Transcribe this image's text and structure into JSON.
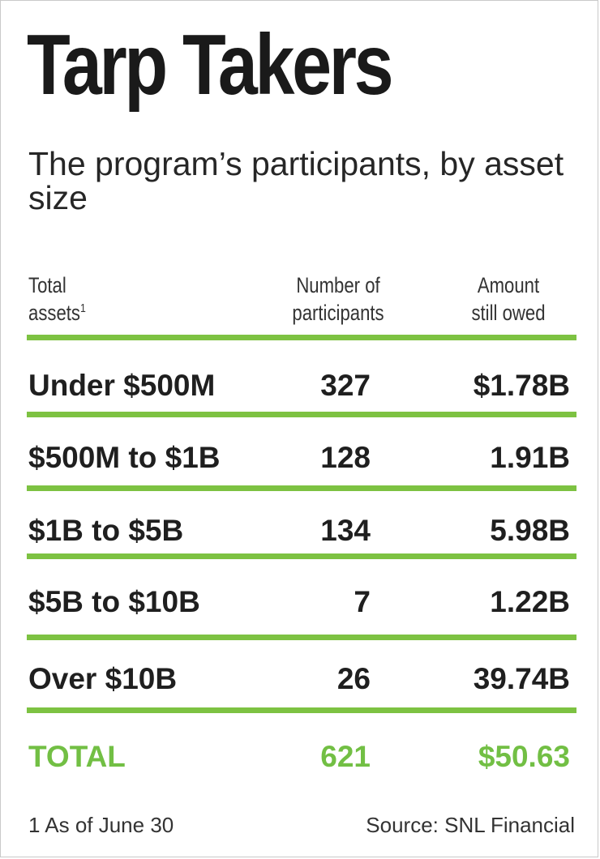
{
  "chart_data": {
    "type": "table",
    "title": "Tarp Takers",
    "subtitle": "The program’s participants, by asset size",
    "columns": {
      "assets": "Total\nassets",
      "assets_note_mark": "1",
      "participants": "Number of\nparticipants",
      "owed": "Amount\nstill owed"
    },
    "rows": [
      {
        "label": "Under $500M",
        "participants": "327",
        "owed": "$1.78B"
      },
      {
        "label": "$500M to $1B",
        "participants": "128",
        "owed": "1.91B"
      },
      {
        "label": "$1B to $5B",
        "participants": "134",
        "owed": "5.98B"
      },
      {
        "label": "$5B to $10B",
        "participants": "7",
        "owed": "1.22B"
      },
      {
        "label": "Over $10B",
        "participants": "26",
        "owed": "39.74B"
      }
    ],
    "total": {
      "label": "TOTAL",
      "participants": "621",
      "owed": "$50.63"
    },
    "values": {
      "participants": [
        327,
        128,
        134,
        7,
        26
      ],
      "owed_billions": [
        1.78,
        1.91,
        5.98,
        1.22,
        39.74
      ]
    }
  },
  "footnote": "1 As of June 30",
  "source": "Source: SNL Financial",
  "colors": {
    "accent": "#7dc242",
    "total_text": "#72bf44",
    "text": "#1f1f1f"
  }
}
